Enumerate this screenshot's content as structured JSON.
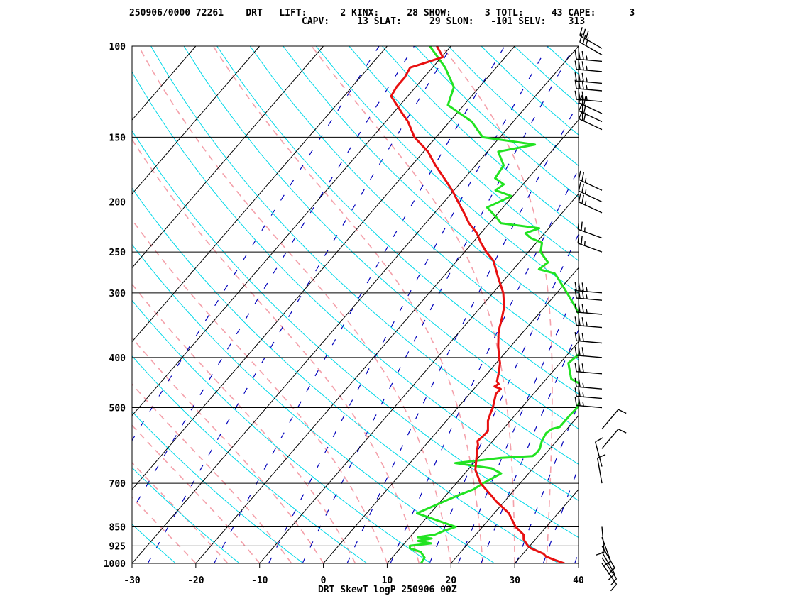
{
  "header": {
    "line1": "250906/0000 72261    DRT   LIFT:      2 KINX:     28 SHOW:      3 TOTL:     43 CAPE:      3",
    "line2": "CAPV:     13 SLAT:     29 SLON:   -101 SELV:    313"
  },
  "footer": {
    "title": "DRT SkewT logP 250906 00Z"
  },
  "colors": {
    "temperature": "#e81010",
    "dewpoint": "#22e322",
    "isotherm": "#000000",
    "isobar": "#000000",
    "dry_adiabat": "#00d8e8",
    "moist_adiabat": "#f4a0aa",
    "mixing_ratio": "#0000bb",
    "wind_barb": "#000000"
  },
  "chart_data": {
    "type": "skewt",
    "x_axis": {
      "ticks": [
        -30,
        -20,
        -10,
        0,
        10,
        20,
        30,
        40
      ],
      "range": [
        -30,
        40
      ],
      "unit": "C"
    },
    "y_axis": {
      "ticks": [
        100,
        150,
        200,
        250,
        300,
        400,
        500,
        700,
        850,
        925,
        1000
      ],
      "range": [
        100,
        1000
      ],
      "scale": "log"
    },
    "temperature": [
      [
        1000,
        37.8
      ],
      [
        985,
        35.8
      ],
      [
        970,
        34
      ],
      [
        958,
        33.2
      ],
      [
        935,
        30.5
      ],
      [
        925,
        29.7
      ],
      [
        900,
        28.2
      ],
      [
        880,
        27.5
      ],
      [
        850,
        25.2
      ],
      [
        800,
        22.3
      ],
      [
        760,
        18.8
      ],
      [
        740,
        17.2
      ],
      [
        700,
        13.8
      ],
      [
        660,
        11.2
      ],
      [
        620,
        9.5
      ],
      [
        600,
        8.6
      ],
      [
        590,
        8.2
      ],
      [
        580,
        7.6
      ],
      [
        570,
        7.8
      ],
      [
        555,
        7.9
      ],
      [
        530,
        6.5
      ],
      [
        510,
        5.8
      ],
      [
        500,
        5.5
      ],
      [
        470,
        4.1
      ],
      [
        460,
        4.2
      ],
      [
        455,
        2.9
      ],
      [
        450,
        3.2
      ],
      [
        445,
        2.6
      ],
      [
        430,
        1.8
      ],
      [
        410,
        0.6
      ],
      [
        400,
        -0.3
      ],
      [
        380,
        -2
      ],
      [
        360,
        -3.6
      ],
      [
        350,
        -4.3
      ],
      [
        340,
        -4.9
      ],
      [
        320,
        -6.3
      ],
      [
        300,
        -8.4
      ],
      [
        280,
        -11.3
      ],
      [
        260,
        -14.3
      ],
      [
        250,
        -16.6
      ],
      [
        240,
        -18.7
      ],
      [
        230,
        -20.6
      ],
      [
        220,
        -23.2
      ],
      [
        210,
        -25.4
      ],
      [
        200,
        -27.8
      ],
      [
        190,
        -30.3
      ],
      [
        180,
        -33.2
      ],
      [
        170,
        -36.3
      ],
      [
        160,
        -39.3
      ],
      [
        150,
        -43.4
      ],
      [
        140,
        -46.5
      ],
      [
        135,
        -48.5
      ],
      [
        130,
        -50.5
      ],
      [
        125,
        -52.6
      ],
      [
        120,
        -53
      ],
      [
        115,
        -53
      ],
      [
        110,
        -53.5
      ],
      [
        108,
        -52
      ],
      [
        105,
        -49.8
      ],
      [
        100,
        -52.2
      ]
    ],
    "dewpoint": [
      [
        1000,
        15.3
      ],
      [
        975,
        15.1
      ],
      [
        950,
        13.7
      ],
      [
        935,
        11.5
      ],
      [
        925,
        11.2
      ],
      [
        915,
        14.2
      ],
      [
        905,
        11.8
      ],
      [
        895,
        13.6
      ],
      [
        890,
        11.3
      ],
      [
        880,
        13.6
      ],
      [
        865,
        14.5
      ],
      [
        850,
        15.8
      ],
      [
        800,
        7.9
      ],
      [
        780,
        9.2
      ],
      [
        740,
        11.8
      ],
      [
        720,
        13.5
      ],
      [
        700,
        14.2
      ],
      [
        670,
        15.7
      ],
      [
        655,
        13.5
      ],
      [
        640,
        7.1
      ],
      [
        625,
        13.6
      ],
      [
        620,
        18.3
      ],
      [
        610,
        18.5
      ],
      [
        600,
        18.4
      ],
      [
        580,
        17.7
      ],
      [
        560,
        17.3
      ],
      [
        550,
        17.6
      ],
      [
        545,
        18.6
      ],
      [
        520,
        18.6
      ],
      [
        500,
        18.7
      ],
      [
        470,
        17.7
      ],
      [
        455,
        17.3
      ],
      [
        450,
        16
      ],
      [
        440,
        13.9
      ],
      [
        410,
        11.3
      ],
      [
        390,
        11.9
      ],
      [
        370,
        10.4
      ],
      [
        350,
        10.5
      ],
      [
        340,
        7.8
      ],
      [
        320,
        4.9
      ],
      [
        300,
        1.6
      ],
      [
        280,
        -2
      ],
      [
        275,
        -3
      ],
      [
        270,
        -6
      ],
      [
        262,
        -5.5
      ],
      [
        250,
        -8.1
      ],
      [
        240,
        -9.1
      ],
      [
        235,
        -11.5
      ],
      [
        230,
        -13
      ],
      [
        225,
        -11.5
      ],
      [
        220,
        -18.2
      ],
      [
        215,
        -19.5
      ],
      [
        205,
        -22.5
      ],
      [
        195,
        -20.2
      ],
      [
        190,
        -23.5
      ],
      [
        185,
        -23
      ],
      [
        180,
        -25.2
      ],
      [
        170,
        -25.6
      ],
      [
        160,
        -28.3
      ],
      [
        155,
        -23.5
      ],
      [
        150,
        -32.7
      ],
      [
        140,
        -36.5
      ],
      [
        130,
        -42.5
      ],
      [
        120,
        -44
      ],
      [
        110,
        -48
      ],
      [
        100,
        -53.3
      ]
    ],
    "wind_barbs": [
      {
        "p": 1000,
        "dir": 145,
        "spd": 10
      },
      {
        "p": 975,
        "dir": 145,
        "spd": 10
      },
      {
        "p": 950,
        "dir": 150,
        "spd": 10
      },
      {
        "p": 925,
        "dir": 150,
        "spd": 10
      },
      {
        "p": 890,
        "dir": 160,
        "spd": 10
      },
      {
        "p": 850,
        "dir": 175,
        "spd": 10
      },
      {
        "p": 700,
        "dir": 350,
        "spd": 10
      },
      {
        "p": 650,
        "dir": 345,
        "spd": 10
      },
      {
        "p": 600,
        "dir": 40,
        "spd": 10
      },
      {
        "p": 550,
        "dir": 40,
        "spd": 10
      },
      {
        "p": 500,
        "dir": 275,
        "spd": 25
      },
      {
        "p": 480,
        "dir": 275,
        "spd": 25
      },
      {
        "p": 460,
        "dir": 275,
        "spd": 25
      },
      {
        "p": 430,
        "dir": 275,
        "spd": 30
      },
      {
        "p": 400,
        "dir": 275,
        "spd": 30
      },
      {
        "p": 375,
        "dir": 275,
        "spd": 30
      },
      {
        "p": 350,
        "dir": 275,
        "spd": 35
      },
      {
        "p": 330,
        "dir": 275,
        "spd": 35
      },
      {
        "p": 310,
        "dir": 275,
        "spd": 35
      },
      {
        "p": 300,
        "dir": 275,
        "spd": 35
      },
      {
        "p": 250,
        "dir": 290,
        "spd": 25
      },
      {
        "p": 235,
        "dir": 290,
        "spd": 25
      },
      {
        "p": 210,
        "dir": 295,
        "spd": 25
      },
      {
        "p": 200,
        "dir": 295,
        "spd": 25
      },
      {
        "p": 190,
        "dir": 295,
        "spd": 25
      },
      {
        "p": 145,
        "dir": 295,
        "spd": 60
      },
      {
        "p": 140,
        "dir": 295,
        "spd": 60
      },
      {
        "p": 135,
        "dir": 295,
        "spd": 60
      },
      {
        "p": 128,
        "dir": 275,
        "spd": 35
      },
      {
        "p": 122,
        "dir": 275,
        "spd": 35
      },
      {
        "p": 118,
        "dir": 275,
        "spd": 35
      },
      {
        "p": 112,
        "dir": 275,
        "spd": 35
      },
      {
        "p": 107,
        "dir": 275,
        "spd": 35
      },
      {
        "p": 104,
        "dir": 300,
        "spd": 30
      },
      {
        "p": 101,
        "dir": 300,
        "spd": 30
      }
    ],
    "mixing_ratios_gkg": [
      0.1,
      0.2,
      0.4,
      1,
      2,
      3,
      5,
      8,
      12,
      16,
      20,
      28,
      36,
      48
    ],
    "dry_adiabats_K": [
      250,
      260,
      270,
      280,
      290,
      300,
      310,
      320,
      330,
      340,
      350,
      360,
      370,
      380,
      390,
      400,
      410,
      420,
      430,
      440,
      450,
      460,
      470,
      480,
      490,
      500,
      510,
      520
    ],
    "moist_adiabats_C": [
      -20,
      -15,
      -10,
      -5,
      0,
      5,
      10,
      15,
      20,
      25,
      30,
      35
    ],
    "isotherms_C": [
      -120,
      -110,
      -100,
      -90,
      -80,
      -70,
      -60,
      -50,
      -40,
      -30,
      -20,
      -10,
      0,
      10,
      20,
      30,
      40
    ]
  }
}
